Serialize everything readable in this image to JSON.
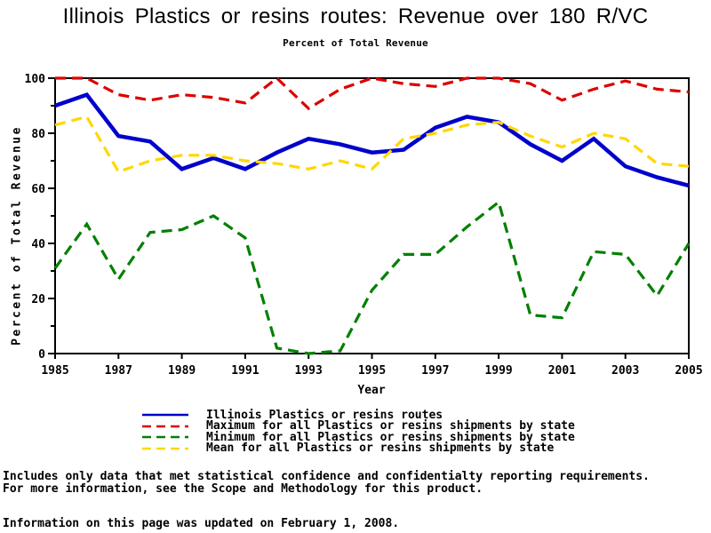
{
  "title": "Illinois Plastics or resins routes: Revenue over 180 R/VC",
  "subtitle": "Percent of Total Revenue",
  "footnotes": [
    "Includes only data that met statistical confidence and confidentialty reporting requirements.",
    "For more information, see the Scope and Methodology for this product.",
    "Information on this page was updated on February 1, 2008."
  ],
  "chart_data": {
    "type": "line",
    "title": "Illinois Plastics or resins routes: Revenue over 180 R/VC",
    "subtitle": "Percent of Total Revenue",
    "xlabel": "Year",
    "ylabel": "Percent of Total Revenue",
    "xlim": [
      1985,
      2005
    ],
    "ylim": [
      0,
      100
    ],
    "grid": false,
    "legend_position": "bottom",
    "xticks": [
      1985,
      1987,
      1989,
      1991,
      1993,
      1995,
      1997,
      1999,
      2001,
      2003,
      2005
    ],
    "yticks": [
      0,
      20,
      40,
      60,
      80,
      100
    ],
    "x": [
      1985,
      1986,
      1987,
      1988,
      1989,
      1990,
      1991,
      1992,
      1993,
      1994,
      1995,
      1996,
      1997,
      1998,
      1999,
      2000,
      2001,
      2002,
      2003,
      2004,
      2005
    ],
    "series": [
      {
        "name": "Illinois Plastics or resins routes",
        "color": "#0000CC",
        "style": "solid",
        "values": [
          90,
          94,
          79,
          77,
          67,
          71,
          67,
          73,
          78,
          76,
          73,
          74,
          82,
          86,
          84,
          76,
          70,
          78,
          68,
          64,
          61
        ]
      },
      {
        "name": "Maximum for all Plastics or resins shipments by state",
        "color": "#DD0000",
        "style": "dashed",
        "values": [
          100,
          100,
          94,
          92,
          94,
          93,
          91,
          100,
          89,
          96,
          100,
          98,
          97,
          100,
          100,
          98,
          92,
          96,
          99,
          96,
          95
        ]
      },
      {
        "name": "Minimum for all Plastics or resins shipments by state",
        "color": "#008000",
        "style": "dashed",
        "values": [
          31,
          47,
          27,
          44,
          45,
          50,
          42,
          2,
          0,
          1,
          23,
          36,
          36,
          46,
          55,
          14,
          13,
          37,
          36,
          21,
          40
        ]
      },
      {
        "name": "Mean for all Plastics or resins shipments by state",
        "color": "#FFD700",
        "style": "dashed",
        "values": [
          83,
          86,
          66,
          70,
          72,
          72,
          70,
          69,
          67,
          70,
          67,
          78,
          80,
          83,
          84,
          79,
          75,
          80,
          78,
          69,
          68
        ]
      }
    ]
  }
}
